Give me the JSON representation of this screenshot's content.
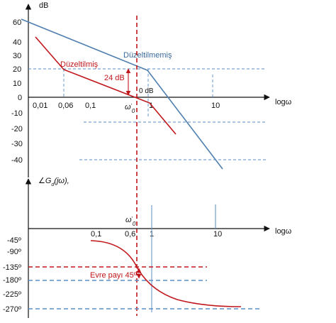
{
  "top_plot": {
    "y_axis_label": "dB",
    "x_axis_label": "logω",
    "y_ticks": [
      "60",
      "40",
      "30",
      "20",
      "10",
      "0",
      "-10",
      "-20",
      "-30",
      "-40"
    ],
    "x_ticks": [
      "0,01",
      "0,06",
      "0,1",
      "1",
      "10"
    ],
    "corrected_label": "Düzeltilmiş",
    "uncorrected_label": "Düzeltilmemiş",
    "gain_label": "24 dB",
    "zero_db_label": "0 dB",
    "crossover_label": "ω′0"
  },
  "bottom_plot": {
    "y_axis_label": "∠Gd(jω),",
    "x_axis_label": "logω",
    "y_ticks": [
      "-45º",
      "-90º",
      "-135º",
      "-180º",
      "-225º",
      "-270º"
    ],
    "x_ticks": [
      "0,1",
      "0,6",
      "1",
      "10"
    ],
    "crossover_label": "ω′0",
    "phase_margin_label": "Evre payı 45º"
  },
  "colors": {
    "corrected": "#c0161b",
    "uncorrected": "#4f7fae",
    "axis": "#111111",
    "guide": "#5b8fc7"
  }
}
